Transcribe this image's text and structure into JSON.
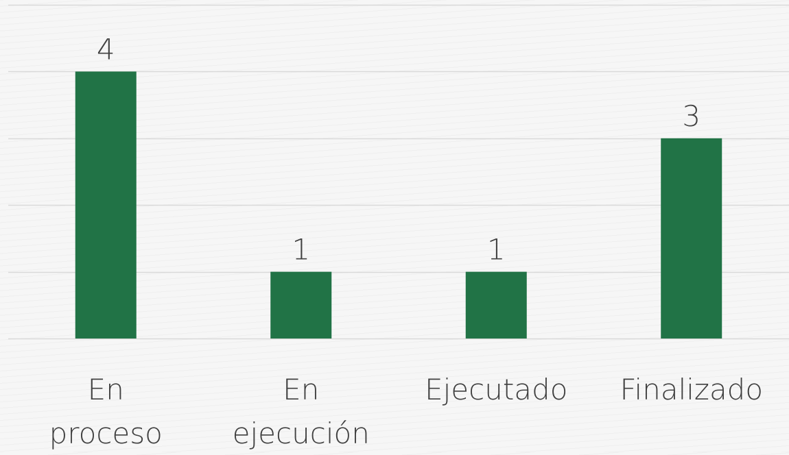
{
  "chart_data": {
    "type": "bar",
    "title": "",
    "xlabel": "",
    "ylabel": "",
    "categories": [
      [
        "En",
        "proceso"
      ],
      [
        "En",
        "ejecución"
      ],
      [
        "Ejecutado"
      ],
      [
        "Finalizado"
      ]
    ],
    "values": [
      4,
      1,
      1,
      3
    ],
    "data_labels": [
      "4",
      "1",
      "1",
      "3"
    ],
    "ylim": [
      0,
      5
    ],
    "y_gridline_step": 1,
    "show_y_axis_labels": false,
    "grid": true,
    "legend": "none",
    "bar_color": "#217346",
    "gridline_color": "#d9d9d9",
    "text_color": "#404040"
  }
}
